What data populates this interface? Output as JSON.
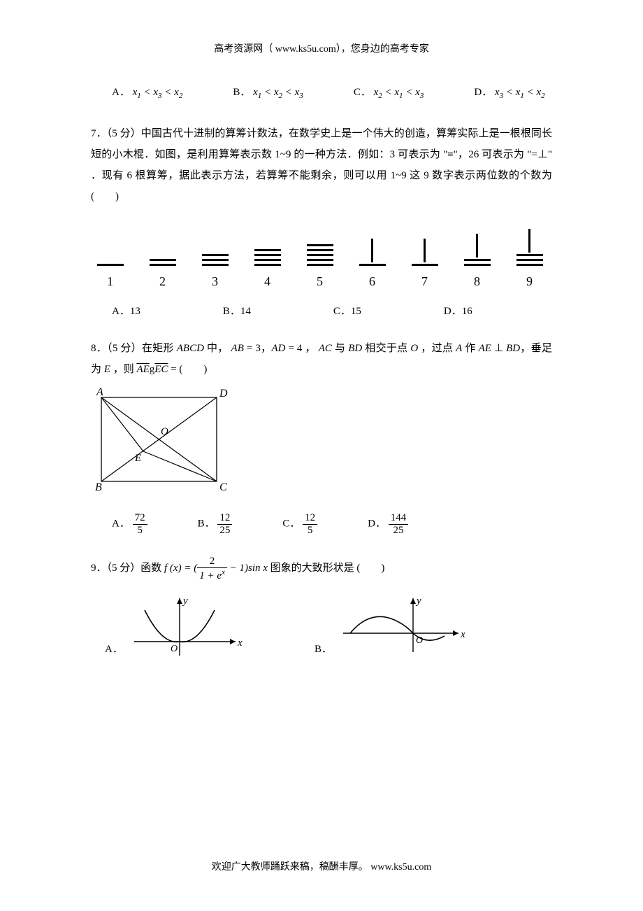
{
  "header": {
    "text": "高考资源网（ www.ks5u.com），您身边的高考专家"
  },
  "q6_options": {
    "a_label": "A．",
    "a_math": "x₁ < x₃ < x₂",
    "b_label": "B．",
    "b_math": "x₁ < x₂ < x₃",
    "c_label": "C．",
    "c_math": "x₂ < x₁ < x₃",
    "d_label": "D．",
    "d_math": "x₃ < x₁ < x₂"
  },
  "q7": {
    "text": "7．（5 分）中国古代十进制的算筹计数法，在数学史上是一个伟大的创造，算筹实际上是一根根同长短的小木棍．如图，是利用算筹表示数 1~9 的一种方法．例如：3 可表示为 \"≡\"，26 可表示为 \"=⊥\" ．现有 6 根算筹，据此表示方法，若算筹不能剩余，则可以用 1~9 这 9 数字表示两位数的个数为(　　)",
    "rods": {
      "labels": [
        "1",
        "2",
        "3",
        "4",
        "5",
        "6",
        "7",
        "8",
        "9"
      ],
      "h_counts": [
        1,
        2,
        3,
        4,
        5,
        0,
        1,
        2,
        3
      ],
      "v_counts": [
        0,
        0,
        0,
        0,
        0,
        1,
        1,
        1,
        1
      ]
    },
    "options": {
      "a": "A．13",
      "b": "B．14",
      "c": "C．15",
      "d": "D．16"
    }
  },
  "q8": {
    "prefix": "8．（5 分）在矩形 ",
    "abcd": "ABCD",
    "mid1": " 中， ",
    "ab": "AB",
    "eq3": " = 3，",
    "ad": "AD",
    "eq4": " = 4 ， ",
    "ac": "AC",
    "mid2": " 与 ",
    "bd": "BD",
    "mid3": " 相交于点 ",
    "o": "O",
    "mid4": " ，过点 ",
    "a": "A",
    "mid5": " 作 ",
    "ae": "AE",
    "perp": " ⊥ ",
    "bd2": "BD",
    "tail": "，垂足为 ",
    "e": "E",
    "then": " ，则 ",
    "vec_ae": "AE",
    "g": "g",
    "vec_ec": "EC",
    "eqparen": " = (　　)",
    "rect": {
      "labels": {
        "A": "A",
        "B": "B",
        "C": "C",
        "D": "D",
        "O": "O",
        "E": "E"
      }
    },
    "options": {
      "a_lbl": "A．",
      "a_num": "72",
      "a_den": "5",
      "b_lbl": "B．",
      "b_num": "12",
      "b_den": "25",
      "c_lbl": "C．",
      "c_num": "12",
      "c_den": "5",
      "d_lbl": "D．",
      "d_num": "144",
      "d_den": "25"
    }
  },
  "q9": {
    "prefix": "9．（5 分）函数 ",
    "f": "f (x) = (",
    "num": "2",
    "den": "1 + eˣ",
    "suffix": " − 1)sin x",
    "tail": " 图象的大致形状是 (　　)",
    "opt_a": "A．",
    "opt_b": "B．",
    "axis_y": "y",
    "axis_x": "x",
    "origin": "O"
  },
  "footer": {
    "text": "欢迎广大教师踊跃来稿，稿酬丰厚。 www.ks5u.com"
  },
  "colors": {
    "text": "#000000",
    "bg": "#ffffff"
  }
}
